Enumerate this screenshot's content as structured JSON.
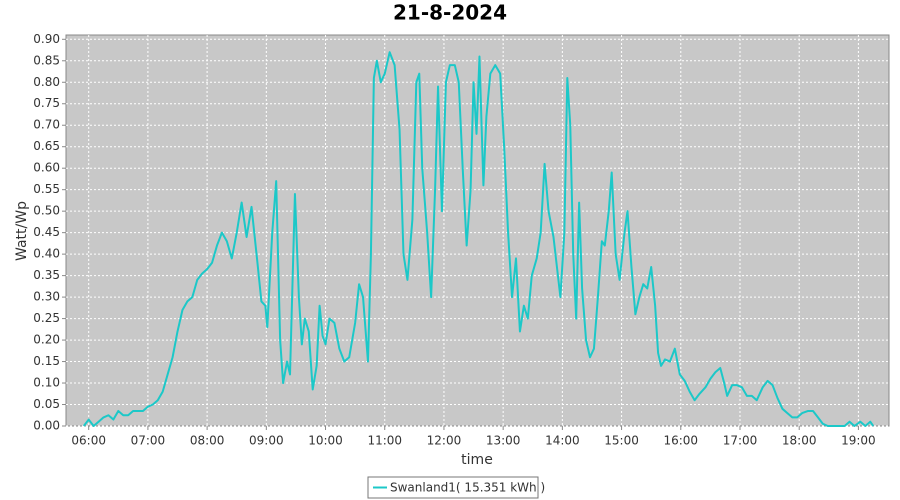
{
  "chart_data": {
    "type": "line",
    "title": "21-8-2024",
    "x_label": "time",
    "y_label": "Watt/Wp",
    "grid": true,
    "background": "#c8c8c8",
    "legend_position": "bottom",
    "xlim": [
      337,
      1171
    ],
    "xticks": [
      {
        "value": 360,
        "label": "06:00"
      },
      {
        "value": 420,
        "label": "07:00"
      },
      {
        "value": 480,
        "label": "08:00"
      },
      {
        "value": 540,
        "label": "09:00"
      },
      {
        "value": 600,
        "label": "10:00"
      },
      {
        "value": 660,
        "label": "11:00"
      },
      {
        "value": 720,
        "label": "12:00"
      },
      {
        "value": 780,
        "label": "13:00"
      },
      {
        "value": 840,
        "label": "14:00"
      },
      {
        "value": 900,
        "label": "15:00"
      },
      {
        "value": 960,
        "label": "16:00"
      },
      {
        "value": 1020,
        "label": "17:00"
      },
      {
        "value": 1080,
        "label": "18:00"
      },
      {
        "value": 1140,
        "label": "19:00"
      }
    ],
    "ylim": [
      0,
      0.91
    ],
    "yticks": [
      {
        "value": 0,
        "label": "0.00"
      },
      0.05,
      {
        "value": 0.1,
        "label": "0.10"
      },
      0.15,
      {
        "value": 0.2,
        "label": "0.20"
      },
      0.25,
      {
        "value": 0.3,
        "label": "0.30"
      },
      0.35,
      {
        "value": 0.4,
        "label": "0.40"
      },
      0.45,
      {
        "value": 0.5,
        "label": "0.50"
      },
      0.55,
      {
        "value": 0.6,
        "label": "0.60"
      },
      0.65,
      {
        "value": 0.7,
        "label": "0.70"
      },
      0.75,
      {
        "value": 0.8,
        "label": "0.80"
      },
      0.85,
      {
        "value": 0.9,
        "label": "0.90"
      }
    ],
    "x": [
      355,
      360,
      365,
      370,
      375,
      380,
      385,
      390,
      395,
      400,
      405,
      410,
      415,
      420,
      425,
      430,
      435,
      440,
      445,
      450,
      455,
      460,
      465,
      470,
      475,
      480,
      485,
      490,
      495,
      500,
      505,
      510,
      515,
      520,
      525,
      531,
      535,
      539,
      541,
      546,
      550,
      554,
      557,
      561,
      564,
      569,
      573,
      576,
      579,
      583,
      587,
      591,
      594,
      597,
      600,
      604,
      609,
      614,
      619,
      624,
      630,
      634,
      638,
      643,
      646,
      649,
      652,
      656,
      660,
      665,
      670,
      675,
      679,
      683,
      688,
      692,
      695,
      698,
      703,
      707,
      711,
      714,
      718,
      722,
      726,
      731,
      735,
      739,
      743,
      747,
      750,
      753,
      756,
      760,
      763,
      767,
      772,
      777,
      781,
      785,
      789,
      793,
      797,
      801,
      805,
      809,
      814,
      818,
      822,
      826,
      831,
      835,
      838,
      842,
      845,
      848,
      851,
      854,
      857,
      860,
      864,
      868,
      872,
      876,
      880,
      883,
      887,
      890,
      894,
      898,
      903,
      906,
      910,
      914,
      918,
      922,
      926,
      930,
      934,
      937,
      940,
      944,
      949,
      954,
      959,
      964,
      969,
      974,
      979,
      985,
      990,
      995,
      1000,
      1004,
      1007,
      1012,
      1017,
      1022,
      1027,
      1032,
      1037,
      1043,
      1048,
      1053,
      1058,
      1063,
      1068,
      1073,
      1078,
      1083,
      1089,
      1094,
      1099,
      1104,
      1109,
      1126,
      1131,
      1136,
      1142,
      1147,
      1152,
      1155
    ],
    "series": [
      {
        "name": "Swanland1( 15.351 kWh )",
        "color": "#1cc8c8",
        "values": [
          0,
          0.015,
          0,
          0.01,
          0.02,
          0.025,
          0.015,
          0.035,
          0.025,
          0.025,
          0.035,
          0.035,
          0.035,
          0.045,
          0.05,
          0.06,
          0.08,
          0.12,
          0.16,
          0.22,
          0.27,
          0.29,
          0.3,
          0.34,
          0.355,
          0.365,
          0.38,
          0.42,
          0.45,
          0.43,
          0.39,
          0.45,
          0.52,
          0.44,
          0.51,
          0.38,
          0.29,
          0.28,
          0.23,
          0.45,
          0.57,
          0.2,
          0.1,
          0.15,
          0.12,
          0.54,
          0.3,
          0.19,
          0.25,
          0.22,
          0.085,
          0.14,
          0.28,
          0.21,
          0.19,
          0.25,
          0.24,
          0.18,
          0.15,
          0.16,
          0.24,
          0.33,
          0.3,
          0.15,
          0.4,
          0.81,
          0.85,
          0.8,
          0.82,
          0.87,
          0.84,
          0.69,
          0.4,
          0.34,
          0.48,
          0.8,
          0.82,
          0.6,
          0.45,
          0.3,
          0.55,
          0.79,
          0.5,
          0.8,
          0.84,
          0.84,
          0.8,
          0.6,
          0.42,
          0.55,
          0.8,
          0.68,
          0.86,
          0.56,
          0.72,
          0.82,
          0.84,
          0.82,
          0.65,
          0.45,
          0.3,
          0.39,
          0.22,
          0.28,
          0.25,
          0.35,
          0.39,
          0.45,
          0.61,
          0.5,
          0.44,
          0.36,
          0.3,
          0.45,
          0.81,
          0.7,
          0.4,
          0.25,
          0.52,
          0.32,
          0.2,
          0.16,
          0.18,
          0.3,
          0.43,
          0.42,
          0.5,
          0.59,
          0.4,
          0.34,
          0.45,
          0.5,
          0.37,
          0.26,
          0.3,
          0.33,
          0.32,
          0.37,
          0.28,
          0.17,
          0.14,
          0.155,
          0.15,
          0.18,
          0.12,
          0.105,
          0.08,
          0.06,
          0.075,
          0.09,
          0.11,
          0.125,
          0.135,
          0.1,
          0.07,
          0.095,
          0.095,
          0.09,
          0.07,
          0.07,
          0.06,
          0.09,
          0.105,
          0.095,
          0.065,
          0.04,
          0.03,
          0.02,
          0.02,
          0.03,
          0.035,
          0.035,
          0.02,
          0.005,
          0,
          0,
          0.01,
          0,
          0.01,
          0,
          0.01,
          0
        ]
      }
    ]
  }
}
